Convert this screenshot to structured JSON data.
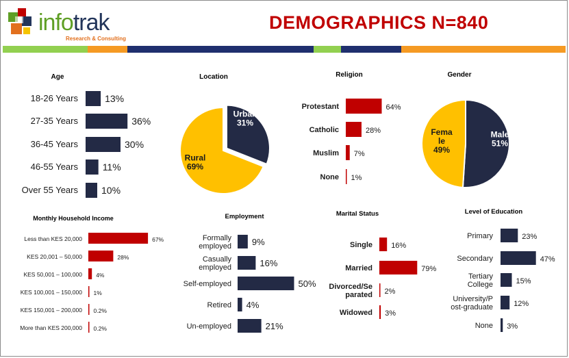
{
  "header": {
    "brand_part1": "info",
    "brand_part2": "trak",
    "tagline": "Research & Consulting",
    "title": "DEMOGRAPHICS N=840"
  },
  "colors": {
    "navy": "#232a45",
    "red": "#c00000",
    "yellow": "#ffc000",
    "green": "#92d050",
    "orange": "#f59a23",
    "darkblue": "#1f2f6e"
  },
  "chart_data": [
    {
      "type": "bar",
      "title": "Age",
      "categories": [
        "18-26 Years",
        "27-35 Years",
        "36-45 Years",
        "46-55 Years",
        "Over 55 Years"
      ],
      "values": [
        13,
        36,
        30,
        11,
        10
      ],
      "labels": [
        "13%",
        "36%",
        "30%",
        "11%",
        "10%"
      ],
      "color": "#232a45"
    },
    {
      "type": "pie",
      "title": "Location",
      "categories": [
        "Urban",
        "Rural"
      ],
      "values": [
        31,
        69
      ],
      "labels": [
        "Urban\n31%",
        "Rural\n69%"
      ],
      "colors": [
        "#232a45",
        "#ffc000"
      ]
    },
    {
      "type": "bar",
      "title": "Religion",
      "categories": [
        "Protestant",
        "Catholic",
        "Muslim",
        "None"
      ],
      "values": [
        64,
        28,
        7,
        1
      ],
      "labels": [
        "64%",
        "28%",
        "7%",
        "1%"
      ],
      "color": "#c00000"
    },
    {
      "type": "pie",
      "title": "Gender",
      "categories": [
        "Male",
        "Female"
      ],
      "values": [
        51,
        49
      ],
      "labels": [
        "Male\n51%",
        "Fema\nle\n49%"
      ],
      "colors": [
        "#232a45",
        "#ffc000"
      ]
    },
    {
      "type": "bar",
      "title": "Monthly Household Income",
      "categories": [
        "Less than KES 20,000",
        "KES 20,001 – 50,000",
        "KES 50,001 – 100,000",
        "KES 100,001 – 150,000",
        "KES 150,001 – 200,000",
        "More than KES 200,000"
      ],
      "values": [
        67,
        28,
        4,
        1,
        0.2,
        0.2
      ],
      "labels": [
        "67%",
        "28%",
        "4%",
        "1%",
        "0.2%",
        "0.2%"
      ],
      "color": "#c00000"
    },
    {
      "type": "bar",
      "title": "Employment",
      "categories": [
        "Formally\nemployed",
        "Casually\nemployed",
        "Self-employed",
        "Retired",
        "Un-employed"
      ],
      "values": [
        9,
        16,
        50,
        4,
        21
      ],
      "labels": [
        "9%",
        "16%",
        "50%",
        "4%",
        "21%"
      ],
      "color": "#232a45"
    },
    {
      "type": "bar",
      "title": "Marital Status",
      "categories": [
        "Single",
        "Married",
        "Divorced/Se\nparated",
        "Widowed"
      ],
      "values": [
        16,
        79,
        2,
        3
      ],
      "labels": [
        "16%",
        "79%",
        "2%",
        "3%"
      ],
      "color": "#c00000"
    },
    {
      "type": "bar",
      "title": "Level of Education",
      "categories": [
        "Primary",
        "Secondary",
        "Tertiary\nCollege",
        "University/P\nost-graduate",
        "None"
      ],
      "values": [
        23,
        47,
        15,
        12,
        3
      ],
      "labels": [
        "23%",
        "47%",
        "15%",
        "12%",
        "3%"
      ],
      "color": "#232a45"
    }
  ]
}
